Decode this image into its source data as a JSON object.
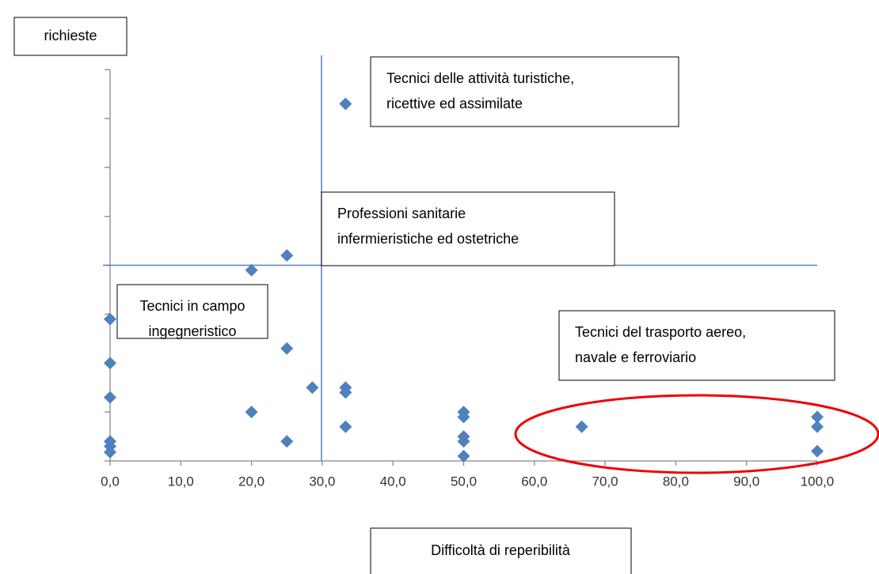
{
  "chart_data": {
    "type": "scatter",
    "y_label": "richieste",
    "x_label": "Difficoltà di reperibilità",
    "annotations": [
      {
        "lines": [
          "Tecnici delle attività turistiche,",
          "ricettive ed assimilate"
        ]
      },
      {
        "lines": [
          "Professioni sanitarie",
          "infermieristiche ed ostetriche"
        ]
      },
      {
        "lines": [
          "Tecnici in campo",
          "ingegneristico"
        ]
      },
      {
        "lines": [
          "Tecnici del trasporto aereo,",
          "navale e ferroviario"
        ]
      }
    ],
    "color": "#4f81bd",
    "x": [
      33.3,
      25,
      20,
      0,
      0,
      0,
      0,
      0,
      0,
      25,
      28.6,
      33.3,
      33.3,
      20,
      33.3,
      25,
      50,
      50,
      50,
      50,
      50,
      66.7,
      100,
      100,
      100
    ],
    "values": [
      7.3,
      4.2,
      3.9,
      2.9,
      2.0,
      1.3,
      0.4,
      0.3,
      0.18,
      2.3,
      1.5,
      1.5,
      1.4,
      1.0,
      0.7,
      0.4,
      1.0,
      0.9,
      0.5,
      0.4,
      0.1,
      0.7,
      0.9,
      0.7,
      0.2
    ],
    "xlim": [
      0,
      100
    ],
    "xticks": [
      {
        "value": 0,
        "label": "0,0"
      },
      {
        "value": 10,
        "label": "10,0"
      },
      {
        "value": 20,
        "label": "20,0"
      },
      {
        "value": 30,
        "label": "30,0"
      },
      {
        "value": 40,
        "label": "40,0"
      },
      {
        "value": 50,
        "label": "50,0"
      },
      {
        "value": 60,
        "label": "60,0"
      },
      {
        "value": 70,
        "label": "70,0"
      },
      {
        "value": 80,
        "label": "80,0"
      },
      {
        "value": 90,
        "label": "90,0"
      },
      {
        "value": 100,
        "label": "100,0"
      }
    ],
    "ylim": [
      0,
      8
    ],
    "yticks": [
      0,
      1,
      2,
      3,
      4,
      5,
      6,
      7,
      8
    ],
    "reference_x": 29.9,
    "reference_y": 4.0,
    "reference_color": "#4f81bd"
  }
}
